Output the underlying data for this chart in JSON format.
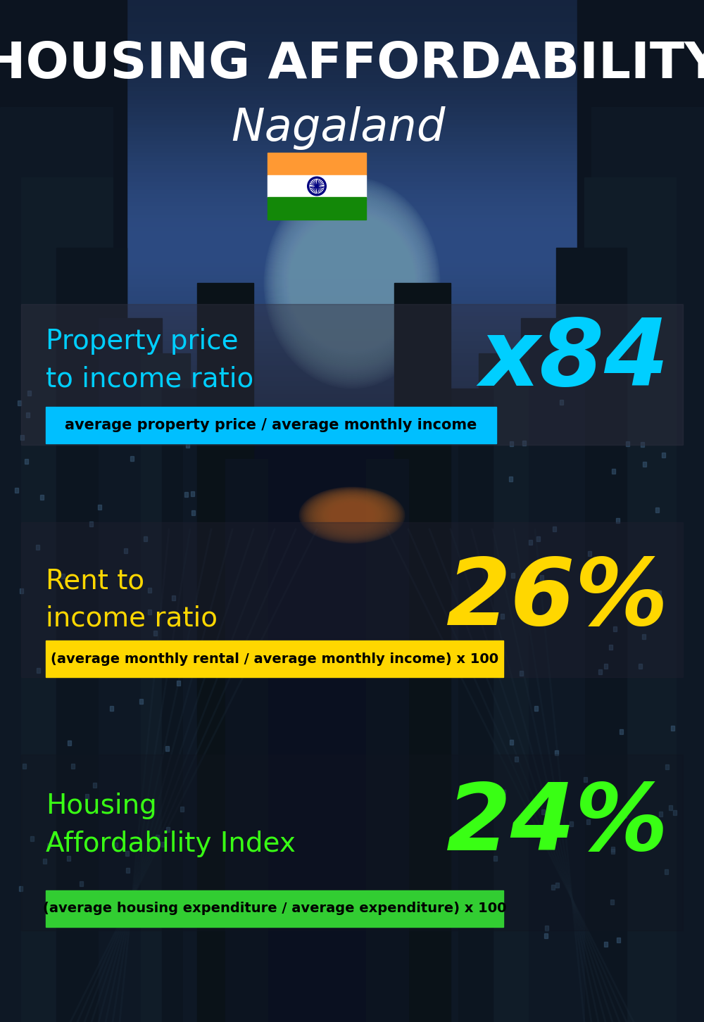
{
  "title_line1": "HOUSING AFFORDABILITY",
  "title_line2": "Nagaland",
  "section1_label": "Property price\nto income ratio",
  "section1_value": "x84",
  "section1_label_color": "#00CFFF",
  "section1_value_color": "#00CFFF",
  "section1_banner_text": "average property price / average monthly income",
  "section1_banner_bg": "#00BFFF",
  "section2_label": "Rent to\nincome ratio",
  "section2_value": "26%",
  "section2_label_color": "#FFD700",
  "section2_value_color": "#FFD700",
  "section2_banner_text": "(average monthly rental / average monthly income) x 100",
  "section2_banner_bg": "#FFD700",
  "section3_label": "Housing\nAffordability Index",
  "section3_value": "24%",
  "section3_label_color": "#39FF14",
  "section3_value_color": "#39FF14",
  "section3_banner_text": "(average housing expenditure / average expenditure) x 100",
  "section3_banner_bg": "#32CD32",
  "title_color": "#FFFFFF",
  "banner_text_color": "#000000",
  "flag_orange": "#FF9933",
  "flag_white": "#FFFFFF",
  "flag_green": "#138808",
  "flag_navy": "#000080"
}
